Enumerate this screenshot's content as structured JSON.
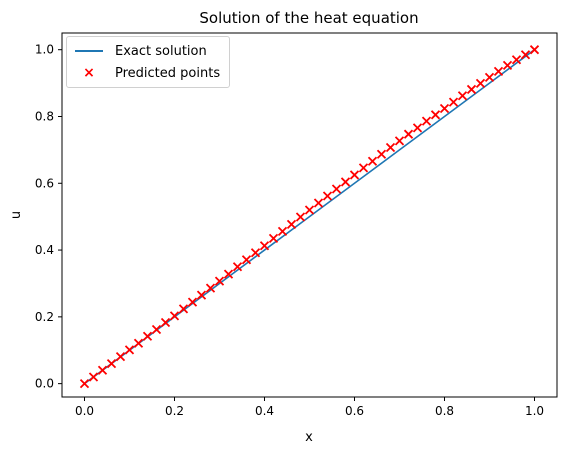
{
  "chart_data": {
    "type": "scatter",
    "title": "Solution of the heat equation",
    "xlabel": "x",
    "ylabel": "u",
    "xlim": [
      -0.05,
      1.05
    ],
    "ylim": [
      -0.04,
      1.05
    ],
    "x_ticks": [
      "0.0",
      "0.2",
      "0.4",
      "0.6",
      "0.8",
      "1.0"
    ],
    "y_ticks": [
      "0.0",
      "0.2",
      "0.4",
      "0.6",
      "0.8",
      "1.0"
    ],
    "grid": false,
    "legend_placement": "top-left",
    "series": [
      {
        "name": "Exact solution",
        "kind": "line",
        "color": "#1f77b4",
        "x": [
          0.0,
          0.1,
          0.2,
          0.3,
          0.4,
          0.5,
          0.6,
          0.7,
          0.8,
          0.9,
          1.0
        ],
        "y": [
          0.0,
          0.1,
          0.2,
          0.3,
          0.4,
          0.5,
          0.6,
          0.7,
          0.8,
          0.9,
          1.0
        ]
      },
      {
        "name": "Predicted points",
        "kind": "scatter",
        "marker": "x",
        "color": "#ff0000",
        "x": [
          0.0,
          0.02,
          0.04,
          0.06,
          0.08,
          0.1,
          0.12,
          0.14,
          0.16,
          0.18,
          0.2,
          0.22,
          0.24,
          0.26,
          0.28,
          0.3,
          0.32,
          0.34,
          0.36,
          0.38,
          0.4,
          0.42,
          0.44,
          0.46,
          0.48,
          0.5,
          0.52,
          0.54,
          0.56,
          0.58,
          0.6,
          0.62,
          0.64,
          0.66,
          0.68,
          0.7,
          0.72,
          0.74,
          0.76,
          0.78,
          0.8,
          0.82,
          0.84,
          0.86,
          0.88,
          0.9,
          0.92,
          0.94,
          0.96,
          0.98,
          1.0
        ],
        "y": [
          0.0,
          0.02,
          0.04,
          0.06,
          0.081,
          0.101,
          0.121,
          0.142,
          0.162,
          0.183,
          0.203,
          0.224,
          0.244,
          0.265,
          0.286,
          0.307,
          0.328,
          0.35,
          0.371,
          0.392,
          0.413,
          0.435,
          0.456,
          0.477,
          0.499,
          0.52,
          0.541,
          0.562,
          0.583,
          0.604,
          0.625,
          0.646,
          0.666,
          0.687,
          0.707,
          0.727,
          0.747,
          0.766,
          0.786,
          0.805,
          0.824,
          0.843,
          0.862,
          0.881,
          0.899,
          0.917,
          0.935,
          0.953,
          0.97,
          0.985,
          1.0
        ]
      }
    ]
  }
}
